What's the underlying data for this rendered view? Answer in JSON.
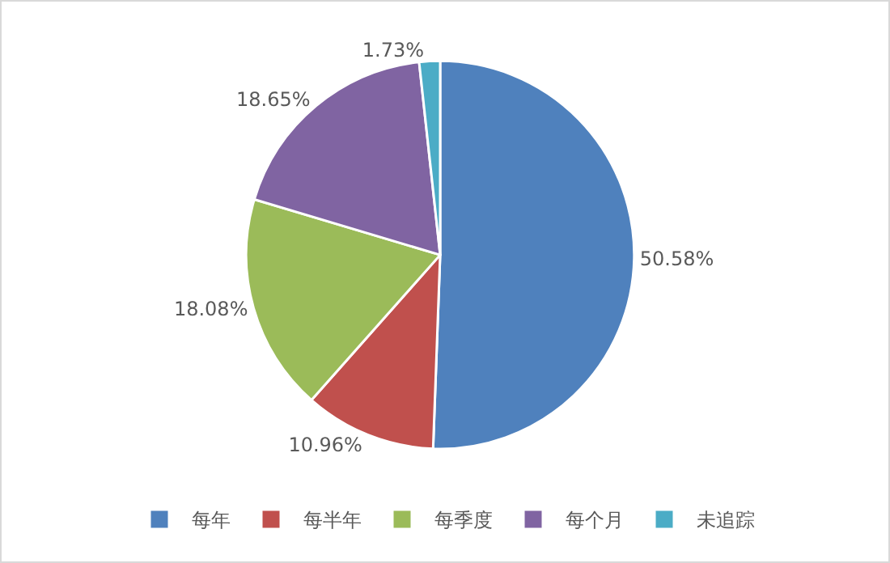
{
  "chart_data": {
    "type": "pie",
    "categories": [
      "每年",
      "每半年",
      "每季度",
      "每个月",
      "未追踪"
    ],
    "values": [
      50.58,
      10.96,
      18.08,
      18.65,
      1.73
    ],
    "value_labels": [
      "50.58%",
      "10.96%",
      "18.08%",
      "18.65%",
      "1.73%"
    ],
    "colors": [
      "#4f81bd",
      "#c0504d",
      "#9bbb59",
      "#8064a2",
      "#4bacc6"
    ],
    "legend": "bottom"
  }
}
